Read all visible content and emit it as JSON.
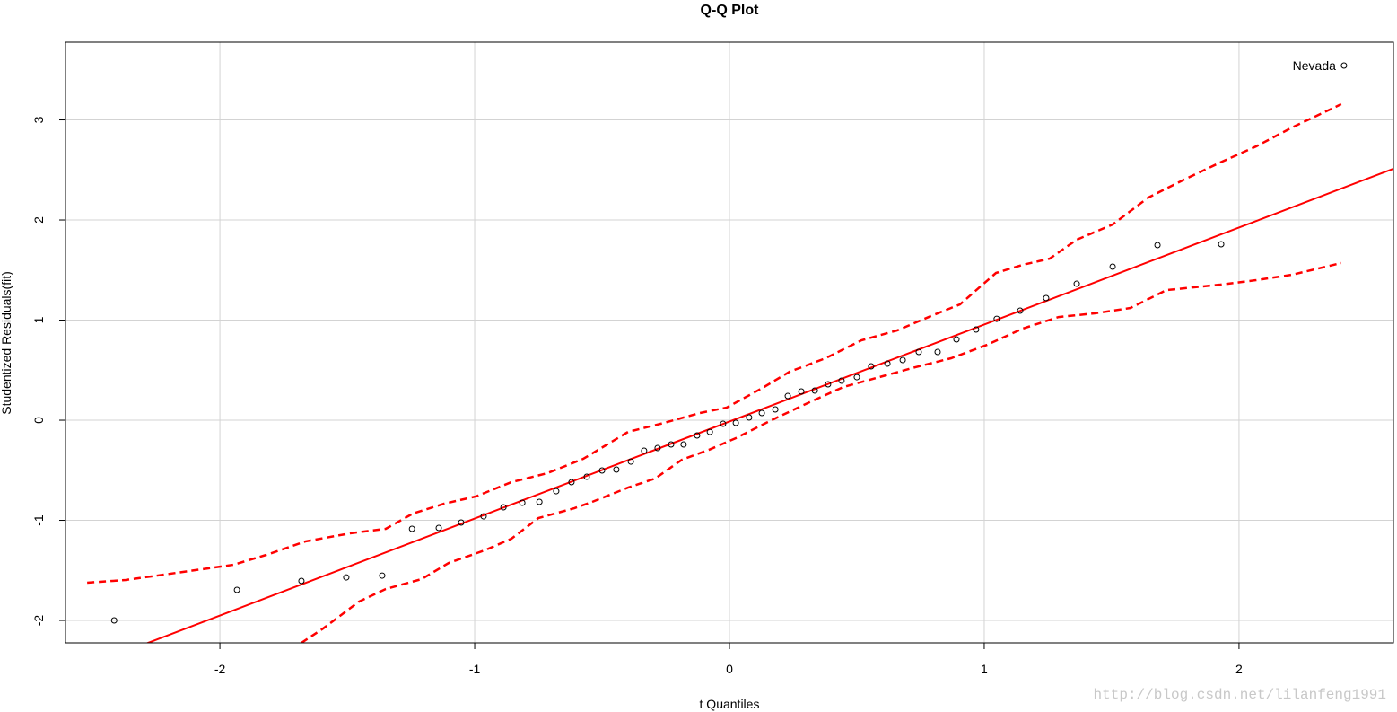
{
  "chart_data": {
    "type": "scatter",
    "title": "Q-Q Plot",
    "xlabel": "t Quantiles",
    "ylabel": "Studentized Residuals(fit)",
    "watermark": "http://blog.csdn.net/lilanfeng1991",
    "xlim": [
      -2.606,
      2.606
    ],
    "ylim": [
      -2.224,
      3.776
    ],
    "xticks": [
      -2,
      -1,
      0,
      1,
      2
    ],
    "yticks": [
      -2,
      -1,
      0,
      1,
      2,
      3
    ],
    "grid": true,
    "grid_color": "#d3d3d3",
    "point_color": "#000000",
    "x": [
      -2.415,
      -1.933,
      -1.68,
      -1.504,
      -1.363,
      -1.246,
      -1.141,
      -1.053,
      -0.965,
      -0.887,
      -0.813,
      -0.746,
      -0.68,
      -0.62,
      -0.56,
      -0.5,
      -0.444,
      -0.387,
      -0.335,
      -0.282,
      -0.229,
      -0.18,
      -0.127,
      -0.077,
      -0.025,
      0.025,
      0.077,
      0.127,
      0.18,
      0.229,
      0.282,
      0.335,
      0.387,
      0.44,
      0.5,
      0.556,
      0.62,
      0.68,
      0.743,
      0.817,
      0.891,
      0.968,
      1.049,
      1.141,
      1.243,
      1.363,
      1.504,
      1.68,
      1.93,
      2.412
    ],
    "values": [
      -2.0,
      -1.695,
      -1.605,
      -1.57,
      -1.552,
      -1.085,
      -1.076,
      -1.022,
      -0.96,
      -0.87,
      -0.825,
      -0.816,
      -0.709,
      -0.619,
      -0.565,
      -0.502,
      -0.493,
      -0.413,
      -0.305,
      -0.278,
      -0.242,
      -0.242,
      -0.152,
      -0.117,
      -0.036,
      -0.027,
      0.027,
      0.072,
      0.108,
      0.242,
      0.287,
      0.296,
      0.359,
      0.395,
      0.43,
      0.538,
      0.565,
      0.601,
      0.682,
      0.682,
      0.807,
      0.906,
      1.013,
      1.094,
      1.22,
      1.363,
      1.534,
      1.749,
      1.758,
      3.543
    ],
    "point_labels": [
      null,
      null,
      null,
      null,
      null,
      null,
      null,
      null,
      null,
      null,
      null,
      null,
      null,
      null,
      null,
      null,
      null,
      null,
      null,
      null,
      null,
      null,
      null,
      null,
      null,
      null,
      null,
      null,
      null,
      null,
      null,
      null,
      null,
      null,
      null,
      null,
      null,
      null,
      null,
      null,
      null,
      null,
      null,
      null,
      null,
      null,
      null,
      null,
      null,
      "Nevada"
    ],
    "fit_line": {
      "color": "#ff0000",
      "x": [
        -2.606,
        2.606
      ],
      "values": [
        -2.538,
        2.512
      ]
    },
    "envelope": [
      {
        "color": "#ff0000",
        "x": [
          -2.521,
          -2.37,
          -2.246,
          -1.947,
          -1.806,
          -1.665,
          -1.489,
          -1.349,
          -1.243,
          -1.12,
          -0.996,
          -0.856,
          -0.715,
          -0.574,
          -0.398,
          -0.257,
          -0.116,
          -0.011,
          0.13,
          0.236,
          0.377,
          0.518,
          0.658,
          0.799,
          0.905,
          1.046,
          1.151,
          1.257,
          1.363,
          1.504,
          1.644,
          1.785,
          1.926,
          2.067,
          2.208,
          2.401
        ],
        "values": [
          -1.623,
          -1.596,
          -1.552,
          -1.444,
          -1.336,
          -1.211,
          -1.13,
          -1.085,
          -0.933,
          -0.834,
          -0.762,
          -0.619,
          -0.529,
          -0.386,
          -0.117,
          -0.027,
          0.072,
          0.126,
          0.323,
          0.484,
          0.619,
          0.798,
          0.897,
          1.049,
          1.157,
          1.471,
          1.552,
          1.614,
          1.803,
          1.955,
          2.224,
          2.404,
          2.574,
          2.735,
          2.924,
          3.157
        ]
      },
      {
        "color": "#ff0000",
        "x": [
          -1.68,
          -1.595,
          -1.454,
          -1.349,
          -1.208,
          -1.102,
          -0.961,
          -0.856,
          -0.75,
          -0.609,
          -0.539,
          -0.398,
          -0.292,
          -0.187,
          -0.081,
          0.025,
          0.165,
          0.306,
          0.447,
          0.588,
          0.729,
          0.87,
          1.011,
          1.151,
          1.292,
          1.433,
          1.574,
          1.715,
          1.926,
          2.067,
          2.208,
          2.401
        ],
        "values": [
          -2.224,
          -2.081,
          -1.812,
          -1.686,
          -1.587,
          -1.426,
          -1.3,
          -1.184,
          -0.978,
          -0.879,
          -0.816,
          -0.673,
          -0.583,
          -0.395,
          -0.296,
          -0.179,
          0.0,
          0.17,
          0.332,
          0.43,
          0.529,
          0.619,
          0.753,
          0.915,
          1.031,
          1.067,
          1.121,
          1.3,
          1.354,
          1.399,
          1.453,
          1.57
        ]
      }
    ]
  }
}
